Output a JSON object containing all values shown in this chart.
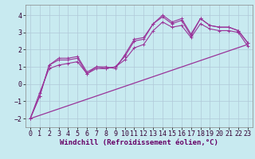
{
  "xlabel": "Windchill (Refroidissement éolien,°C)",
  "background_color": "#c8eaf0",
  "grid_color": "#b0c8d8",
  "line_color": "#993399",
  "xlim": [
    -0.5,
    23.5
  ],
  "ylim": [
    -2.5,
    4.6
  ],
  "yticks": [
    -2,
    -1,
    0,
    1,
    2,
    3,
    4
  ],
  "xticks": [
    0,
    1,
    2,
    3,
    4,
    5,
    6,
    7,
    8,
    9,
    10,
    11,
    12,
    13,
    14,
    15,
    16,
    17,
    18,
    19,
    20,
    21,
    22,
    23
  ],
  "line1_x": [
    0,
    1,
    2,
    3,
    4,
    5,
    6,
    7,
    8,
    9,
    10,
    11,
    12,
    13,
    14,
    15,
    16,
    17,
    18,
    19,
    20,
    21,
    22,
    23
  ],
  "line1_y": [
    -2.0,
    -0.7,
    1.1,
    1.5,
    1.5,
    1.6,
    0.7,
    1.0,
    1.0,
    0.9,
    1.7,
    2.6,
    2.7,
    3.5,
    3.9,
    3.5,
    3.7,
    2.8,
    3.8,
    3.4,
    3.3,
    3.3,
    3.1,
    2.4
  ],
  "line2_x": [
    0,
    1,
    2,
    3,
    4,
    5,
    6,
    7,
    8,
    9,
    10,
    11,
    12,
    13,
    14,
    15,
    16,
    17,
    18,
    19,
    20,
    21,
    22,
    23
  ],
  "line2_y": [
    -2.0,
    -0.7,
    1.1,
    1.4,
    1.4,
    1.5,
    0.6,
    1.0,
    0.9,
    1.0,
    1.6,
    2.5,
    2.6,
    3.5,
    4.0,
    3.6,
    3.8,
    2.9,
    3.8,
    3.4,
    3.3,
    3.3,
    3.1,
    2.4
  ],
  "line3_x": [
    0,
    1,
    2,
    3,
    4,
    5,
    6,
    7,
    8,
    9,
    10,
    11,
    12,
    13,
    14,
    15,
    16,
    17,
    18,
    19,
    20,
    21,
    22,
    23
  ],
  "line3_y": [
    -2.0,
    -0.5,
    0.9,
    1.1,
    1.2,
    1.3,
    0.6,
    0.9,
    0.9,
    1.0,
    1.4,
    2.1,
    2.3,
    3.1,
    3.6,
    3.3,
    3.4,
    2.7,
    3.5,
    3.2,
    3.1,
    3.1,
    3.0,
    2.2
  ],
  "line4_x": [
    0,
    23
  ],
  "line4_y": [
    -2.0,
    2.3
  ],
  "font_size_label": 6.5,
  "font_size_tick": 6.0
}
